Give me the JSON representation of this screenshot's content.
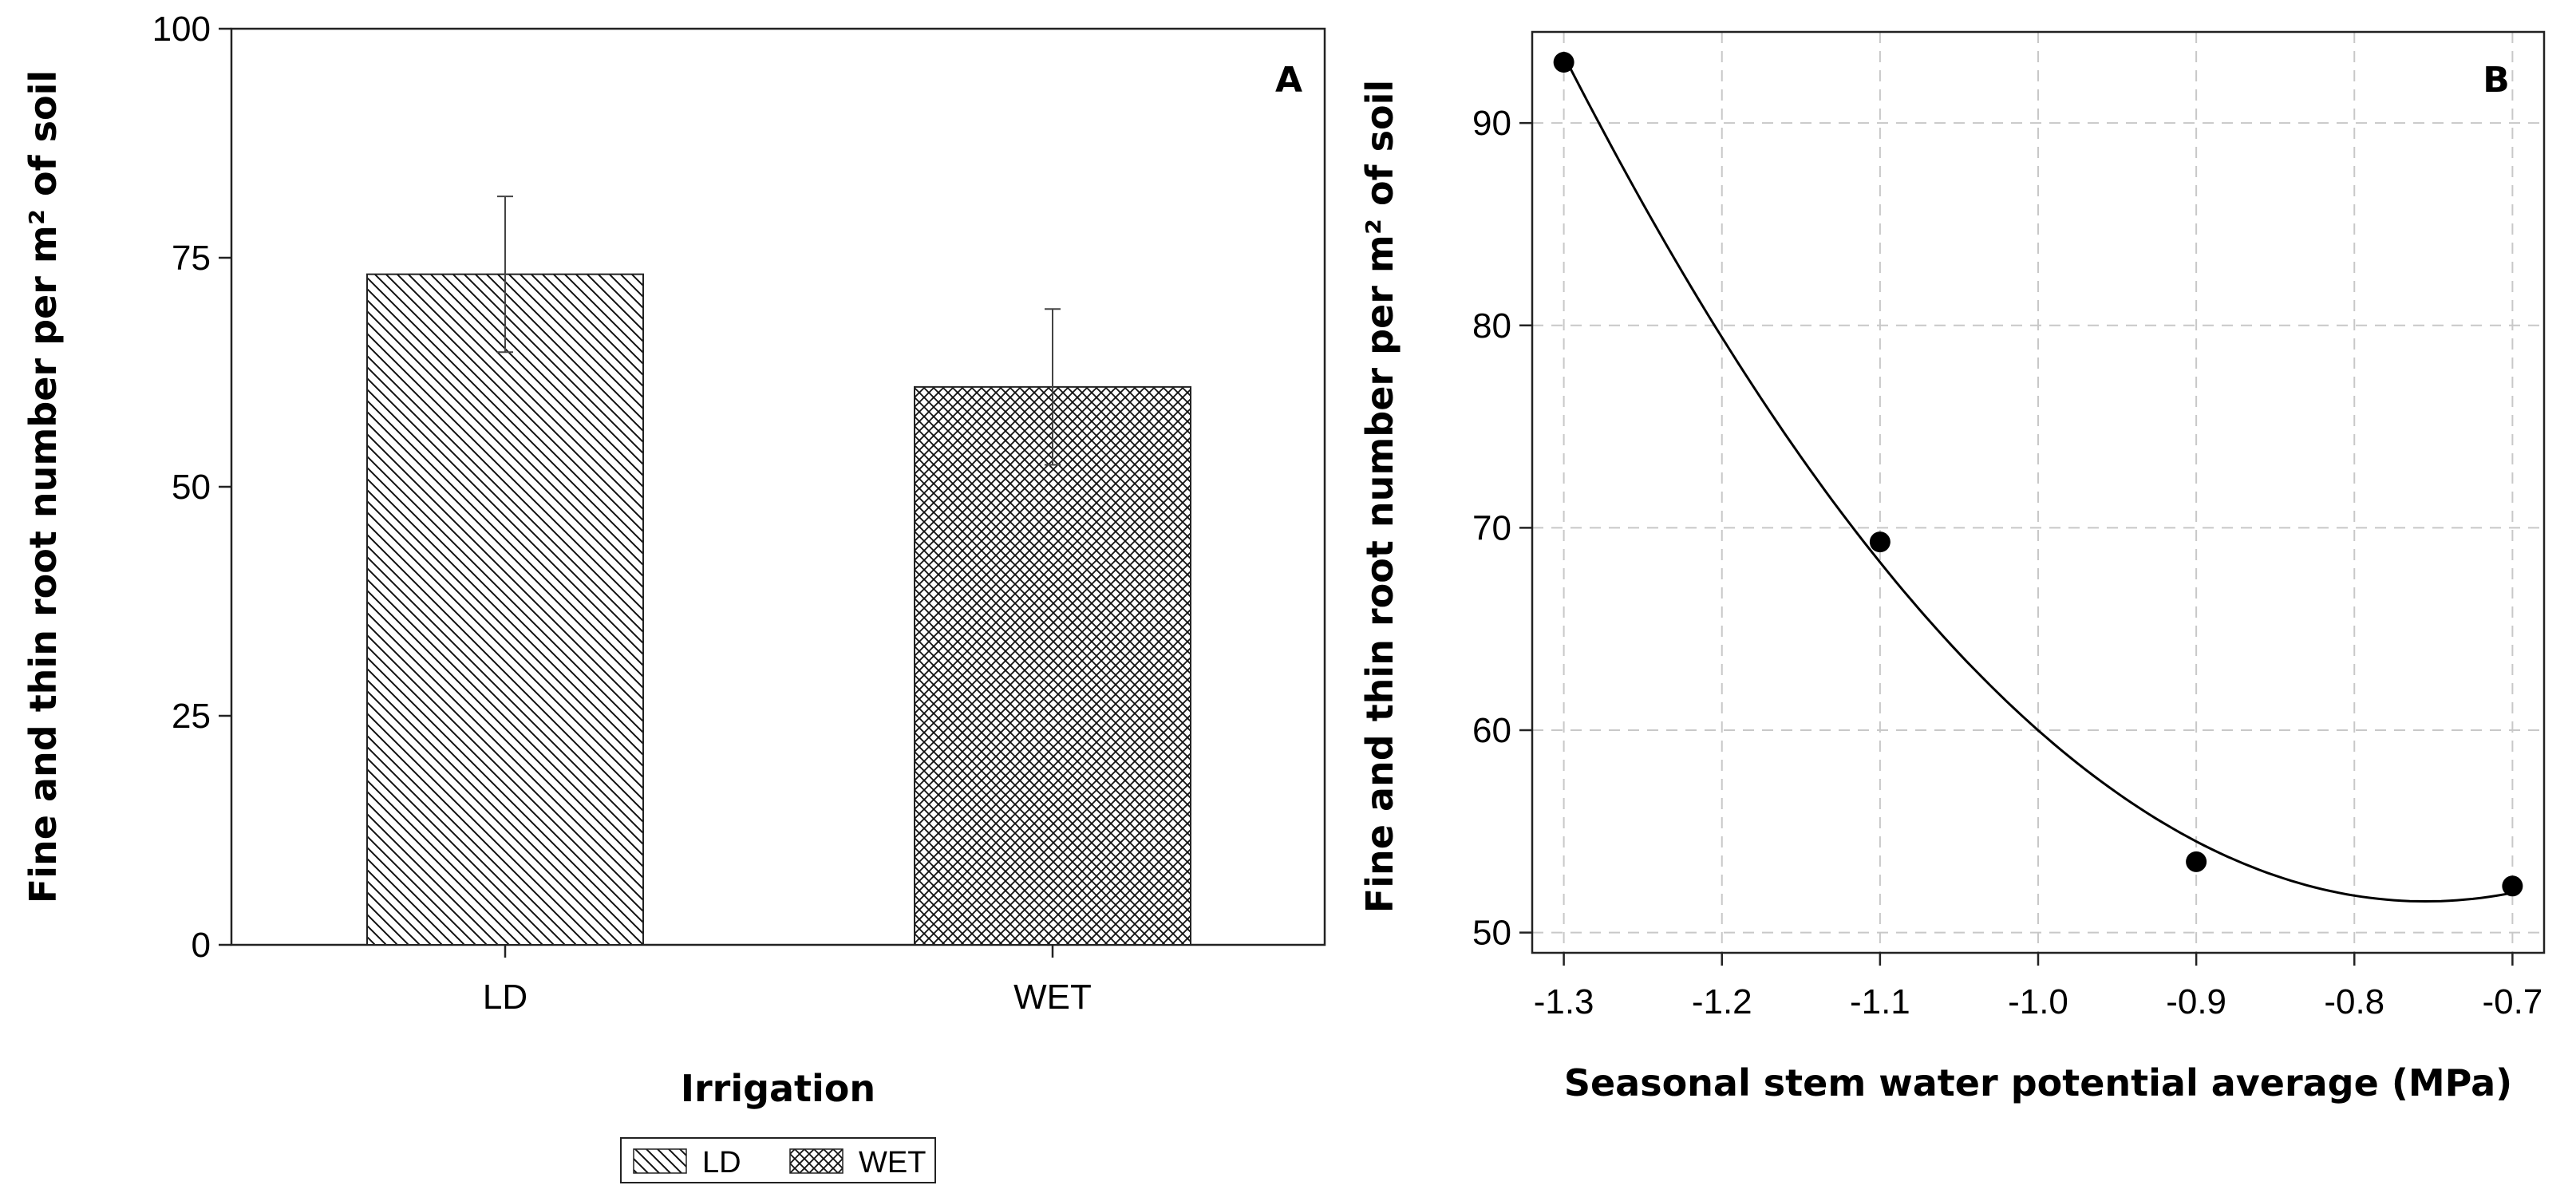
{
  "chart_data": [
    {
      "type": "bar",
      "panel_label": "A",
      "categories": [
        "LD",
        "WET"
      ],
      "values": [
        73.2,
        60.9
      ],
      "error": [
        8.5,
        8.5
      ],
      "patterns": [
        "diagonal",
        "crosshatch"
      ],
      "xlabel": "Irrigation",
      "ylabel": "Fine and thin root number per m² of soil",
      "ylim": [
        0,
        100
      ],
      "yticks": [
        0,
        25,
        50,
        75,
        100
      ],
      "legend": {
        "position": "bottom-center",
        "entries": [
          "LD",
          "WET"
        ]
      }
    },
    {
      "type": "scatter",
      "panel_label": "B",
      "x": [
        -1.3,
        -1.1,
        -0.9,
        -0.7
      ],
      "y": [
        93.0,
        69.3,
        53.5,
        52.3
      ],
      "fit": {
        "type": "quadratic",
        "color": "#000000"
      },
      "xlabel": "Seasonal stem water potential average (MPa)",
      "ylabel": "Fine and thin root number per m² of soil",
      "xlim": [
        -1.32,
        -0.68
      ],
      "ylim": [
        49.0,
        94.5
      ],
      "xticks": [
        -1.3,
        -1.2,
        -1.1,
        -1.0,
        -0.9,
        -0.8,
        -0.7
      ],
      "xtick_labels": [
        "-1.3",
        "-1.2",
        "-1.1",
        "-1.0",
        "-0.9",
        "-0.8",
        "-0.7"
      ],
      "yticks": [
        50,
        60,
        70,
        80,
        90
      ],
      "grid": true
    }
  ]
}
